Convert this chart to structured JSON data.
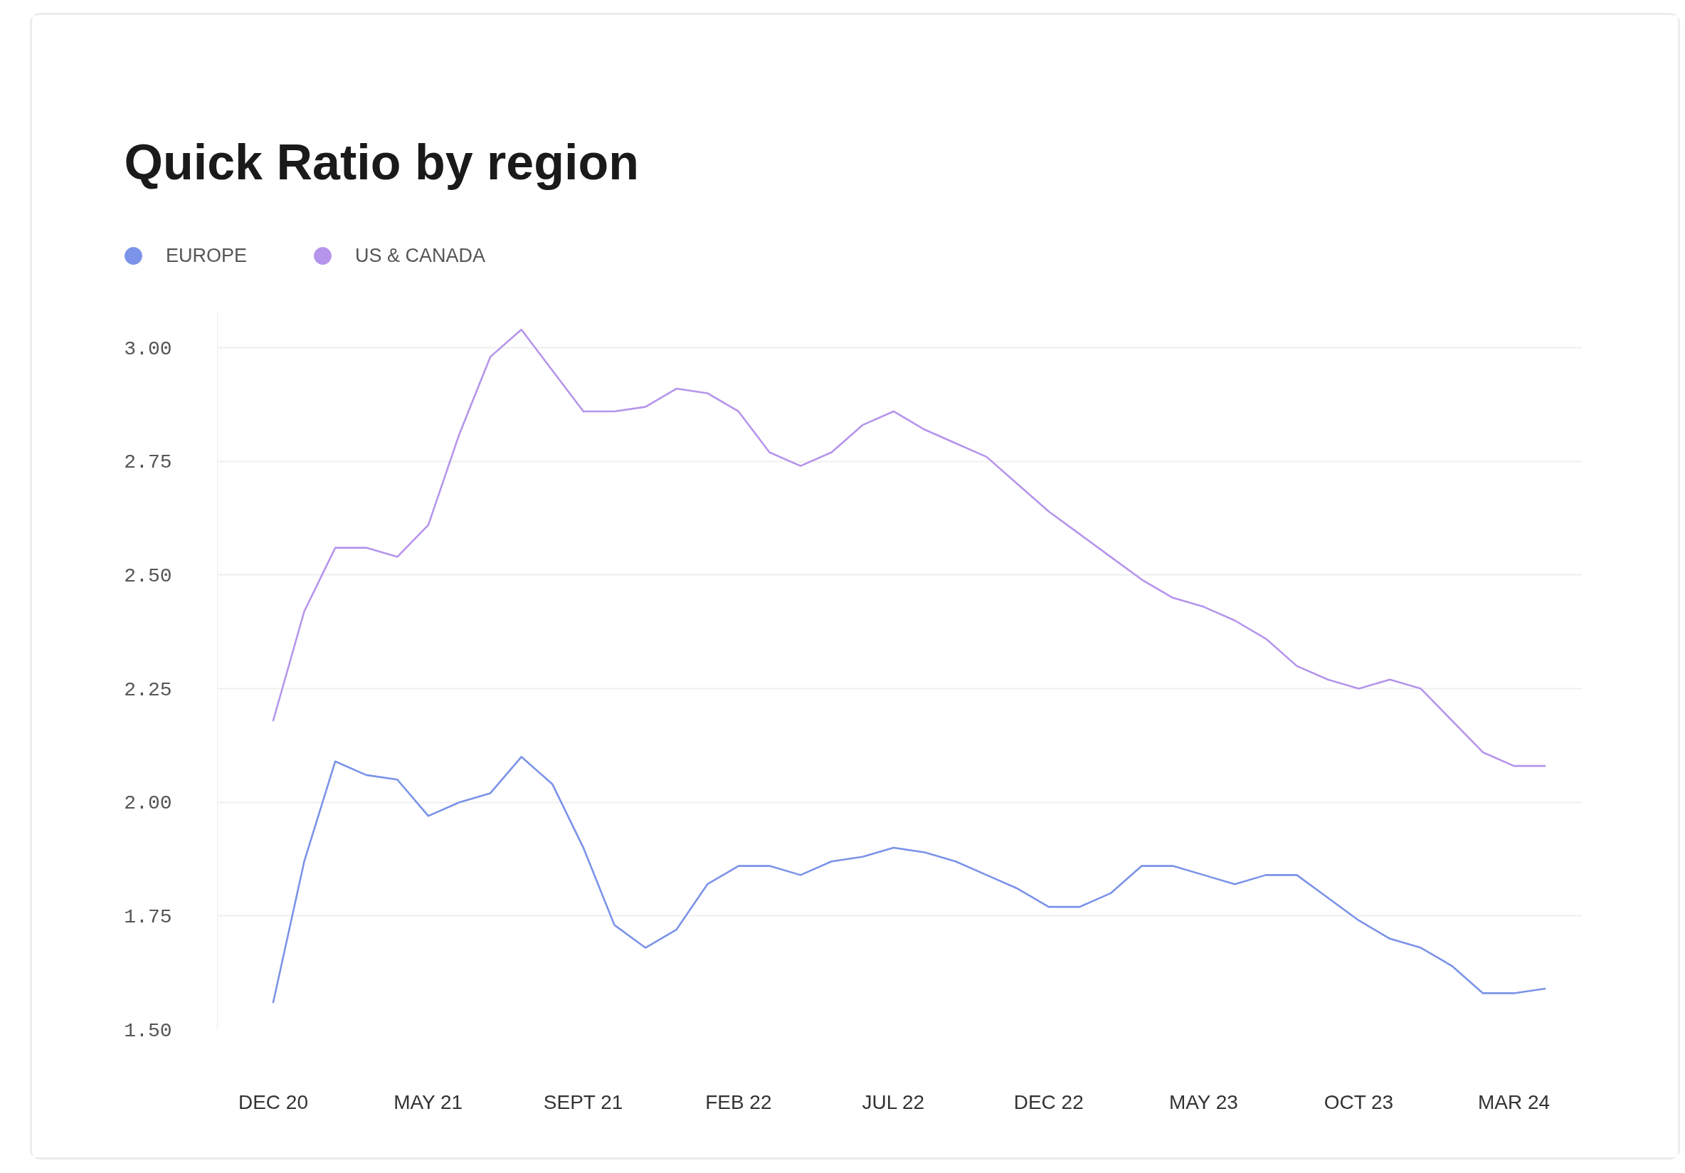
{
  "chart_data": {
    "type": "line",
    "title": "Quick Ratio by region",
    "categories": [
      "DEC 20",
      null,
      null,
      null,
      null,
      "MAY 21",
      null,
      null,
      null,
      null,
      "SEPT 21",
      null,
      null,
      null,
      null,
      "FEB 22",
      null,
      null,
      null,
      null,
      "JUL 22",
      null,
      null,
      null,
      null,
      "DEC 22",
      null,
      null,
      null,
      null,
      "MAY 23",
      null,
      null,
      null,
      null,
      "OCT 23",
      null,
      null,
      null,
      null,
      "MAR 24",
      null
    ],
    "series": [
      {
        "name": "EUROPE",
        "color": "#7b93e8",
        "values": [
          1.56,
          1.87,
          2.09,
          2.06,
          2.05,
          1.97,
          2.0,
          2.02,
          2.1,
          2.04,
          1.9,
          1.73,
          1.68,
          1.72,
          1.82,
          1.86,
          1.86,
          1.84,
          1.87,
          1.88,
          1.9,
          1.89,
          1.87,
          1.84,
          1.81,
          1.77,
          1.77,
          1.8,
          1.86,
          1.86,
          1.84,
          1.82,
          1.84,
          1.84,
          1.79,
          1.74,
          1.7,
          1.68,
          1.64,
          1.58,
          1.58,
          1.59
        ]
      },
      {
        "name": "US & CANADA",
        "color": "#b595ec",
        "values": [
          2.18,
          2.42,
          2.56,
          2.56,
          2.54,
          2.61,
          2.81,
          2.98,
          3.04,
          2.95,
          2.86,
          2.86,
          2.87,
          2.91,
          2.9,
          2.86,
          2.77,
          2.74,
          2.77,
          2.83,
          2.86,
          2.82,
          2.79,
          2.76,
          2.7,
          2.64,
          2.59,
          2.54,
          2.49,
          2.45,
          2.43,
          2.4,
          2.36,
          2.3,
          2.27,
          2.25,
          2.27,
          2.25,
          2.18,
          2.11,
          2.08,
          2.08
        ]
      }
    ],
    "ylim": [
      1.5,
      3.08
    ],
    "yticks": [
      {
        "value": 1.5,
        "label": "1.50"
      },
      {
        "value": 1.75,
        "label": "1.75"
      },
      {
        "value": 2,
        "label": "2.00"
      },
      {
        "value": 2.25,
        "label": "2.25"
      },
      {
        "value": 2.5,
        "label": "2.50"
      },
      {
        "value": 2.75,
        "label": "2.75"
      },
      {
        "value": 3,
        "label": "3.00"
      }
    ],
    "grid": "y",
    "legend": "top left"
  }
}
